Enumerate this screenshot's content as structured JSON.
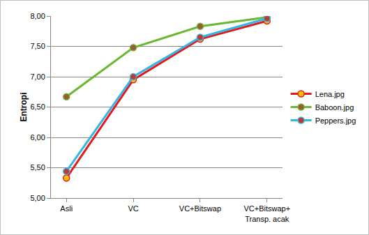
{
  "chart_data": {
    "type": "line",
    "y_label": "Entropi",
    "categories": [
      "Asli",
      "VC",
      "VC+Bitswap",
      "VC+Bitswap+\nTransp. acak"
    ],
    "series": [
      {
        "name": "Lena.jpg",
        "color": "#e31a1c",
        "marker": "circle",
        "values": [
          5.33,
          6.95,
          7.62,
          7.92
        ]
      },
      {
        "name": "Baboon.jpg",
        "color": "#6ab82e",
        "marker": "circle",
        "values": [
          6.67,
          7.48,
          7.83,
          7.98
        ]
      },
      {
        "name": "Peppers.jpg",
        "color": "#33b5e8",
        "marker": "circle",
        "values": [
          5.44,
          7.0,
          7.65,
          7.96
        ]
      }
    ],
    "ylim": [
      5,
      8
    ],
    "yticks": [
      {
        "value": 5,
        "label": "5,00"
      },
      {
        "value": 5.5,
        "label": "5,50"
      },
      {
        "value": 6,
        "label": "6,00"
      },
      {
        "value": 6.5,
        "label": "6,50"
      },
      {
        "value": 7,
        "label": "7,00"
      },
      {
        "value": 7.5,
        "label": "7,50"
      },
      {
        "value": 8,
        "label": "8,00"
      }
    ],
    "grid": true,
    "legend": "right"
  }
}
